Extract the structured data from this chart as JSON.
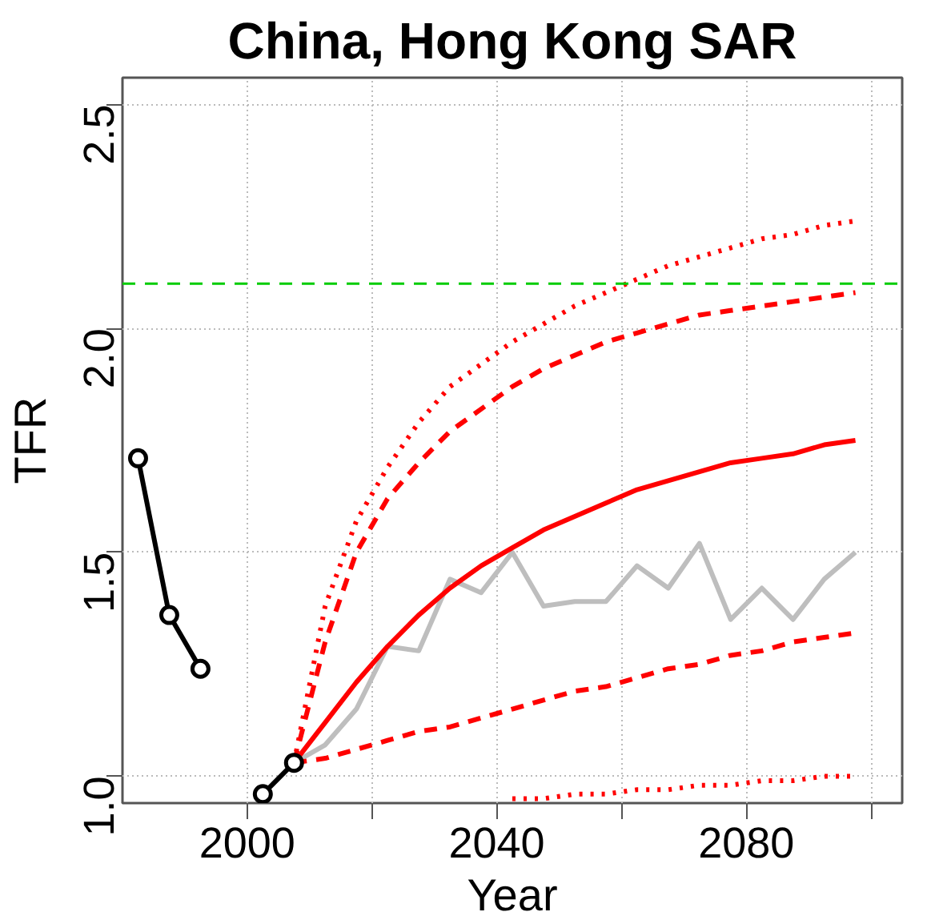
{
  "chart_data": {
    "type": "line",
    "title": "China, Hong Kong SAR",
    "xlabel": "Year",
    "ylabel": "TFR",
    "xlim": [
      1980,
      2105
    ],
    "ylim": [
      0.94,
      2.56
    ],
    "xticks": [
      2000,
      {
        "value": 2020,
        "label": null
      },
      2040,
      {
        "value": 2060,
        "label": null
      },
      2080,
      {
        "value": 2100,
        "label": null
      }
    ],
    "yticks": [
      {
        "value": 1,
        "label": "1.0"
      },
      {
        "value": 1.5,
        "label": "1.5"
      },
      {
        "value": 2,
        "label": "2.0"
      },
      {
        "value": 2.5,
        "label": "2.5"
      }
    ],
    "grid": true,
    "ref_lines": [
      {
        "axis": "y",
        "value": 2.1,
        "color": "#00cc00",
        "line_style": "dashed"
      }
    ],
    "series": [
      {
        "color": "#bebebe",
        "line_style": "solid",
        "marker": "none",
        "x": [
          2007.5,
          2012.5,
          2017.5,
          2022.5,
          2027.5,
          2032.5,
          2037.5,
          2042.5,
          2047.5,
          2052.5,
          2057.5,
          2062.5,
          2067.5,
          2072.5,
          2077.5,
          2082.5,
          2087.5,
          2092.5,
          2097.5
        ],
        "values": [
          1.03,
          1.07,
          1.15,
          1.29,
          1.28,
          1.44,
          1.41,
          1.5,
          1.38,
          1.39,
          1.39,
          1.47,
          1.42,
          1.52,
          1.35,
          1.42,
          1.35,
          1.44,
          1.5
        ]
      },
      {
        "color": "#000000",
        "line_style": "solid",
        "marker": "circle",
        "x": [
          1982.5,
          1987.5,
          1992.5,
          1997.5,
          2002.5,
          2007.5
        ],
        "values": [
          1.71,
          1.36,
          1.24,
          null,
          0.96,
          1.03
        ]
      },
      {
        "color": "#ff0000",
        "line_style": "solid",
        "marker": "none",
        "x": [
          2007.5,
          2012.5,
          2017.5,
          2022.5,
          2027.5,
          2032.5,
          2037.5,
          2042.5,
          2047.5,
          2052.5,
          2057.5,
          2062.5,
          2067.5,
          2072.5,
          2077.5,
          2082.5,
          2087.5,
          2092.5,
          2097.5
        ],
        "values": [
          1.03,
          1.12,
          1.21,
          1.29,
          1.36,
          1.42,
          1.47,
          1.51,
          1.55,
          1.58,
          1.61,
          1.64,
          1.66,
          1.68,
          1.7,
          1.71,
          1.72,
          1.74,
          1.75
        ]
      },
      {
        "color": "#ff0000",
        "line_style": "dashed",
        "marker": "none",
        "x": [
          2007.5,
          2012.5,
          2017.5,
          2022.5,
          2027.5,
          2032.5,
          2037.5,
          2042.5,
          2047.5,
          2052.5,
          2057.5,
          2062.5,
          2067.5,
          2072.5,
          2077.5,
          2082.5,
          2087.5,
          2092.5,
          2097.5
        ],
        "values": [
          1.03,
          1.3,
          1.5,
          1.62,
          1.7,
          1.77,
          1.82,
          1.87,
          1.91,
          1.94,
          1.97,
          1.99,
          2.01,
          2.03,
          2.04,
          2.05,
          2.06,
          2.07,
          2.08
        ]
      },
      {
        "color": "#ff0000",
        "line_style": "dashed",
        "marker": "none",
        "x": [
          2007.5,
          2012.5,
          2017.5,
          2022.5,
          2027.5,
          2032.5,
          2037.5,
          2042.5,
          2047.5,
          2052.5,
          2057.5,
          2062.5,
          2067.5,
          2072.5,
          2077.5,
          2082.5,
          2087.5,
          2092.5,
          2097.5
        ],
        "values": [
          1.03,
          1.04,
          1.06,
          1.08,
          1.1,
          1.11,
          1.13,
          1.15,
          1.17,
          1.19,
          1.2,
          1.22,
          1.24,
          1.25,
          1.27,
          1.28,
          1.3,
          1.31,
          1.32
        ]
      },
      {
        "color": "#ff0000",
        "line_style": "dotted",
        "marker": "none",
        "x": [
          2007.5,
          2012.5,
          2017.5,
          2022.5,
          2027.5,
          2032.5,
          2037.5,
          2042.5,
          2047.5,
          2052.5,
          2057.5,
          2062.5,
          2067.5,
          2072.5,
          2077.5,
          2082.5,
          2087.5,
          2092.5,
          2097.5
        ],
        "values": [
          1.03,
          1.38,
          1.57,
          1.69,
          1.79,
          1.87,
          1.92,
          1.97,
          2.01,
          2.05,
          2.08,
          2.11,
          2.14,
          2.16,
          2.18,
          2.2,
          2.21,
          2.23,
          2.24
        ]
      },
      {
        "color": "#ff0000",
        "line_style": "dotted",
        "marker": "none",
        "x": [
          2042.5,
          2047.5,
          2052.5,
          2057.5,
          2062.5,
          2067.5,
          2072.5,
          2077.5,
          2082.5,
          2087.5,
          2092.5,
          2097.5
        ],
        "values": [
          0.95,
          0.95,
          0.96,
          0.96,
          0.97,
          0.97,
          0.98,
          0.98,
          0.99,
          0.99,
          1.0,
          1.0
        ]
      }
    ]
  }
}
